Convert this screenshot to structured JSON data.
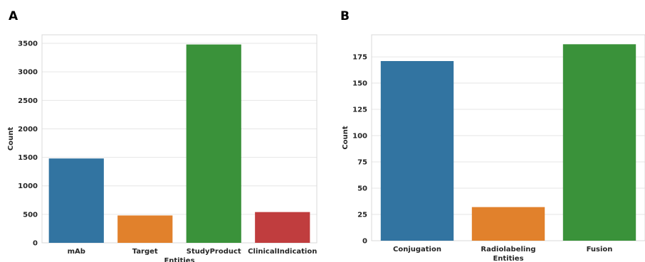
{
  "chart_data": [
    {
      "type": "bar",
      "panel": "A",
      "categories": [
        "mAb",
        "Target",
        "StudyProduct",
        "ClinicalIndication"
      ],
      "values": [
        1480,
        480,
        3480,
        540
      ],
      "colors": [
        "#3274a1",
        "#e1812c",
        "#3a923a",
        "#c03d3e"
      ],
      "xlabel": "Entities",
      "ylabel": "Count",
      "ylim": [
        0,
        3650
      ],
      "yticks": [
        0,
        500,
        1000,
        1500,
        2000,
        2500,
        3000,
        3500
      ],
      "grid": true
    },
    {
      "type": "bar",
      "panel": "B",
      "categories": [
        "Conjugation",
        "Radiolabeling",
        "Fusion"
      ],
      "values": [
        171,
        32,
        187
      ],
      "colors": [
        "#3274a1",
        "#e1812c",
        "#3a923a"
      ],
      "xlabel": "Entities",
      "ylabel": "Count",
      "ylim": [
        0,
        196
      ],
      "yticks": [
        0,
        25,
        50,
        75,
        100,
        125,
        150,
        175
      ],
      "grid": true
    }
  ]
}
